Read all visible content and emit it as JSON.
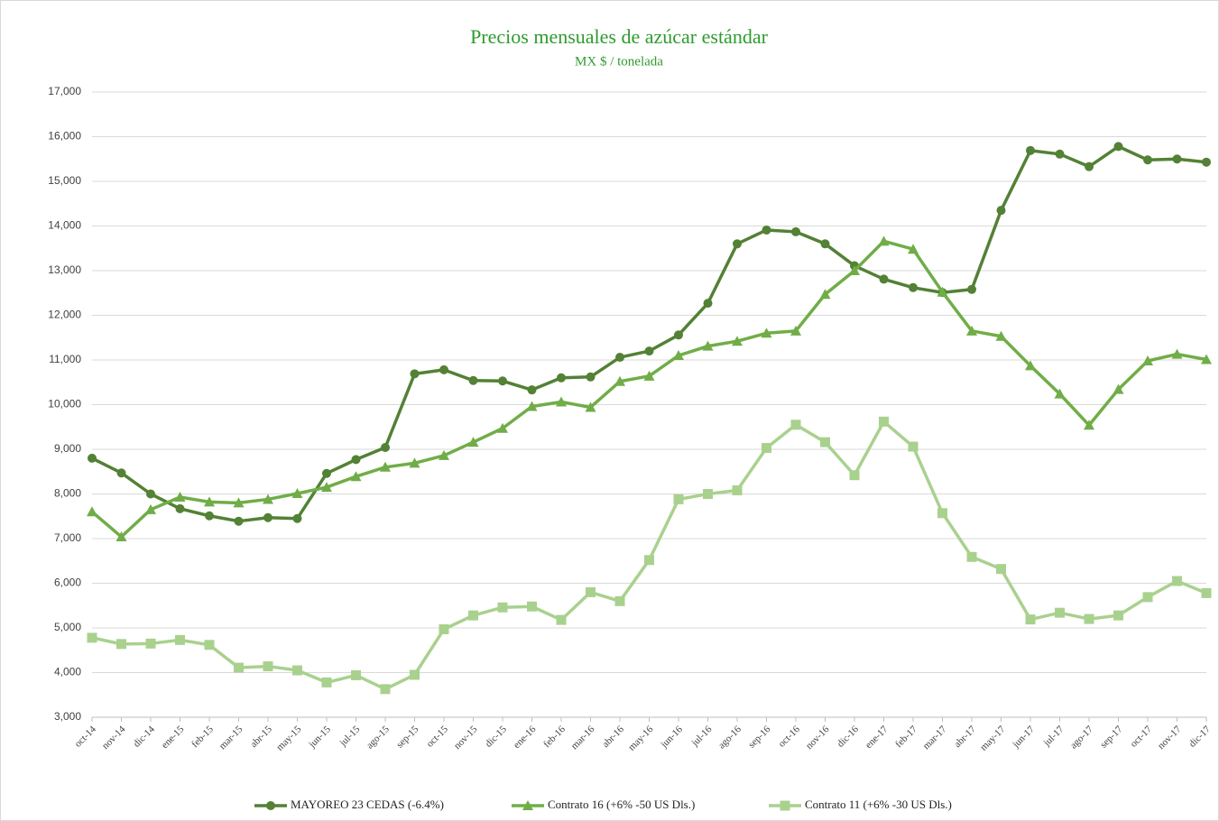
{
  "chart_data": {
    "type": "line",
    "title": "Precios mensuales de azúcar estándar",
    "subtitle": "MX $ / tonelada",
    "categories": [
      "oct-14",
      "nov-14",
      "dic-14",
      "ene-15",
      "feb-15",
      "mar-15",
      "abr-15",
      "may-15",
      "jun-15",
      "jul-15",
      "ago-15",
      "sep-15",
      "oct-15",
      "nov-15",
      "dic-15",
      "ene-16",
      "feb-16",
      "mar-16",
      "abr-16",
      "may-16",
      "jun-16",
      "jul-16",
      "ago-16",
      "sep-16",
      "oct-16",
      "nov-16",
      "dic-16",
      "ene-17",
      "feb-17",
      "mar-17",
      "abr-17",
      "may-17",
      "jun-17",
      "jul-17",
      "ago-17",
      "sep-17",
      "oct-17",
      "nov-17",
      "dic-17"
    ],
    "series": [
      {
        "name": "MAYOREO 23 CEDAS (-6.4%)",
        "color": "#538135",
        "marker": "circle",
        "values": [
          8800,
          8470,
          8000,
          7670,
          7510,
          7390,
          7470,
          7450,
          8460,
          8770,
          9040,
          10690,
          10780,
          10540,
          10530,
          10330,
          10600,
          10620,
          11060,
          11200,
          11560,
          12270,
          13600,
          13910,
          13870,
          13600,
          13110,
          12810,
          12620,
          12510,
          12580,
          14350,
          15690,
          15610,
          15330,
          15780,
          15480,
          15500,
          15430
        ]
      },
      {
        "name": "Contrato 16 (+6% -50 US Dls.)",
        "color": "#70ad47",
        "marker": "triangle",
        "values": [
          7600,
          7040,
          7650,
          7930,
          7820,
          7800,
          7880,
          8010,
          8150,
          8390,
          8600,
          8690,
          8860,
          9160,
          9470,
          9960,
          10060,
          9940,
          10520,
          10640,
          11100,
          11310,
          11420,
          11600,
          11650,
          12470,
          13000,
          13660,
          13480,
          12520,
          11650,
          11530,
          10870,
          10240,
          9540,
          10340,
          10980,
          11130,
          11010
        ]
      },
      {
        "name": "Contrato 11 (+6% -30 US Dls.)",
        "color": "#a9d18e",
        "marker": "square",
        "values": [
          4780,
          4640,
          4650,
          4730,
          4620,
          4110,
          4140,
          4050,
          3780,
          3940,
          3630,
          3950,
          4970,
          5280,
          5460,
          5480,
          5180,
          5800,
          5600,
          6520,
          7880,
          8000,
          8080,
          9030,
          9550,
          9160,
          8420,
          9620,
          9060,
          7570,
          6590,
          6320,
          5190,
          5340,
          5200,
          5280,
          5690,
          6050,
          5780
        ]
      }
    ],
    "ylim": [
      3000,
      17000
    ],
    "yticks": [
      {
        "value": 3000,
        "label": "3,000"
      },
      {
        "value": 4000,
        "label": "4,000"
      },
      {
        "value": 5000,
        "label": "5,000"
      },
      {
        "value": 6000,
        "label": "6,000"
      },
      {
        "value": 7000,
        "label": "7,000"
      },
      {
        "value": 8000,
        "label": "8,000"
      },
      {
        "value": 9000,
        "label": "9,000"
      },
      {
        "value": 10000,
        "label": "10,000"
      },
      {
        "value": 11000,
        "label": "11,000"
      },
      {
        "value": 12000,
        "label": "12,000"
      },
      {
        "value": 13000,
        "label": "13,000"
      },
      {
        "value": 14000,
        "label": "14,000"
      },
      {
        "value": 15000,
        "label": "15,000"
      },
      {
        "value": 16000,
        "label": "16,000"
      },
      {
        "value": 17000,
        "label": "17,000"
      }
    ],
    "grid": true,
    "legend": "bottom"
  }
}
